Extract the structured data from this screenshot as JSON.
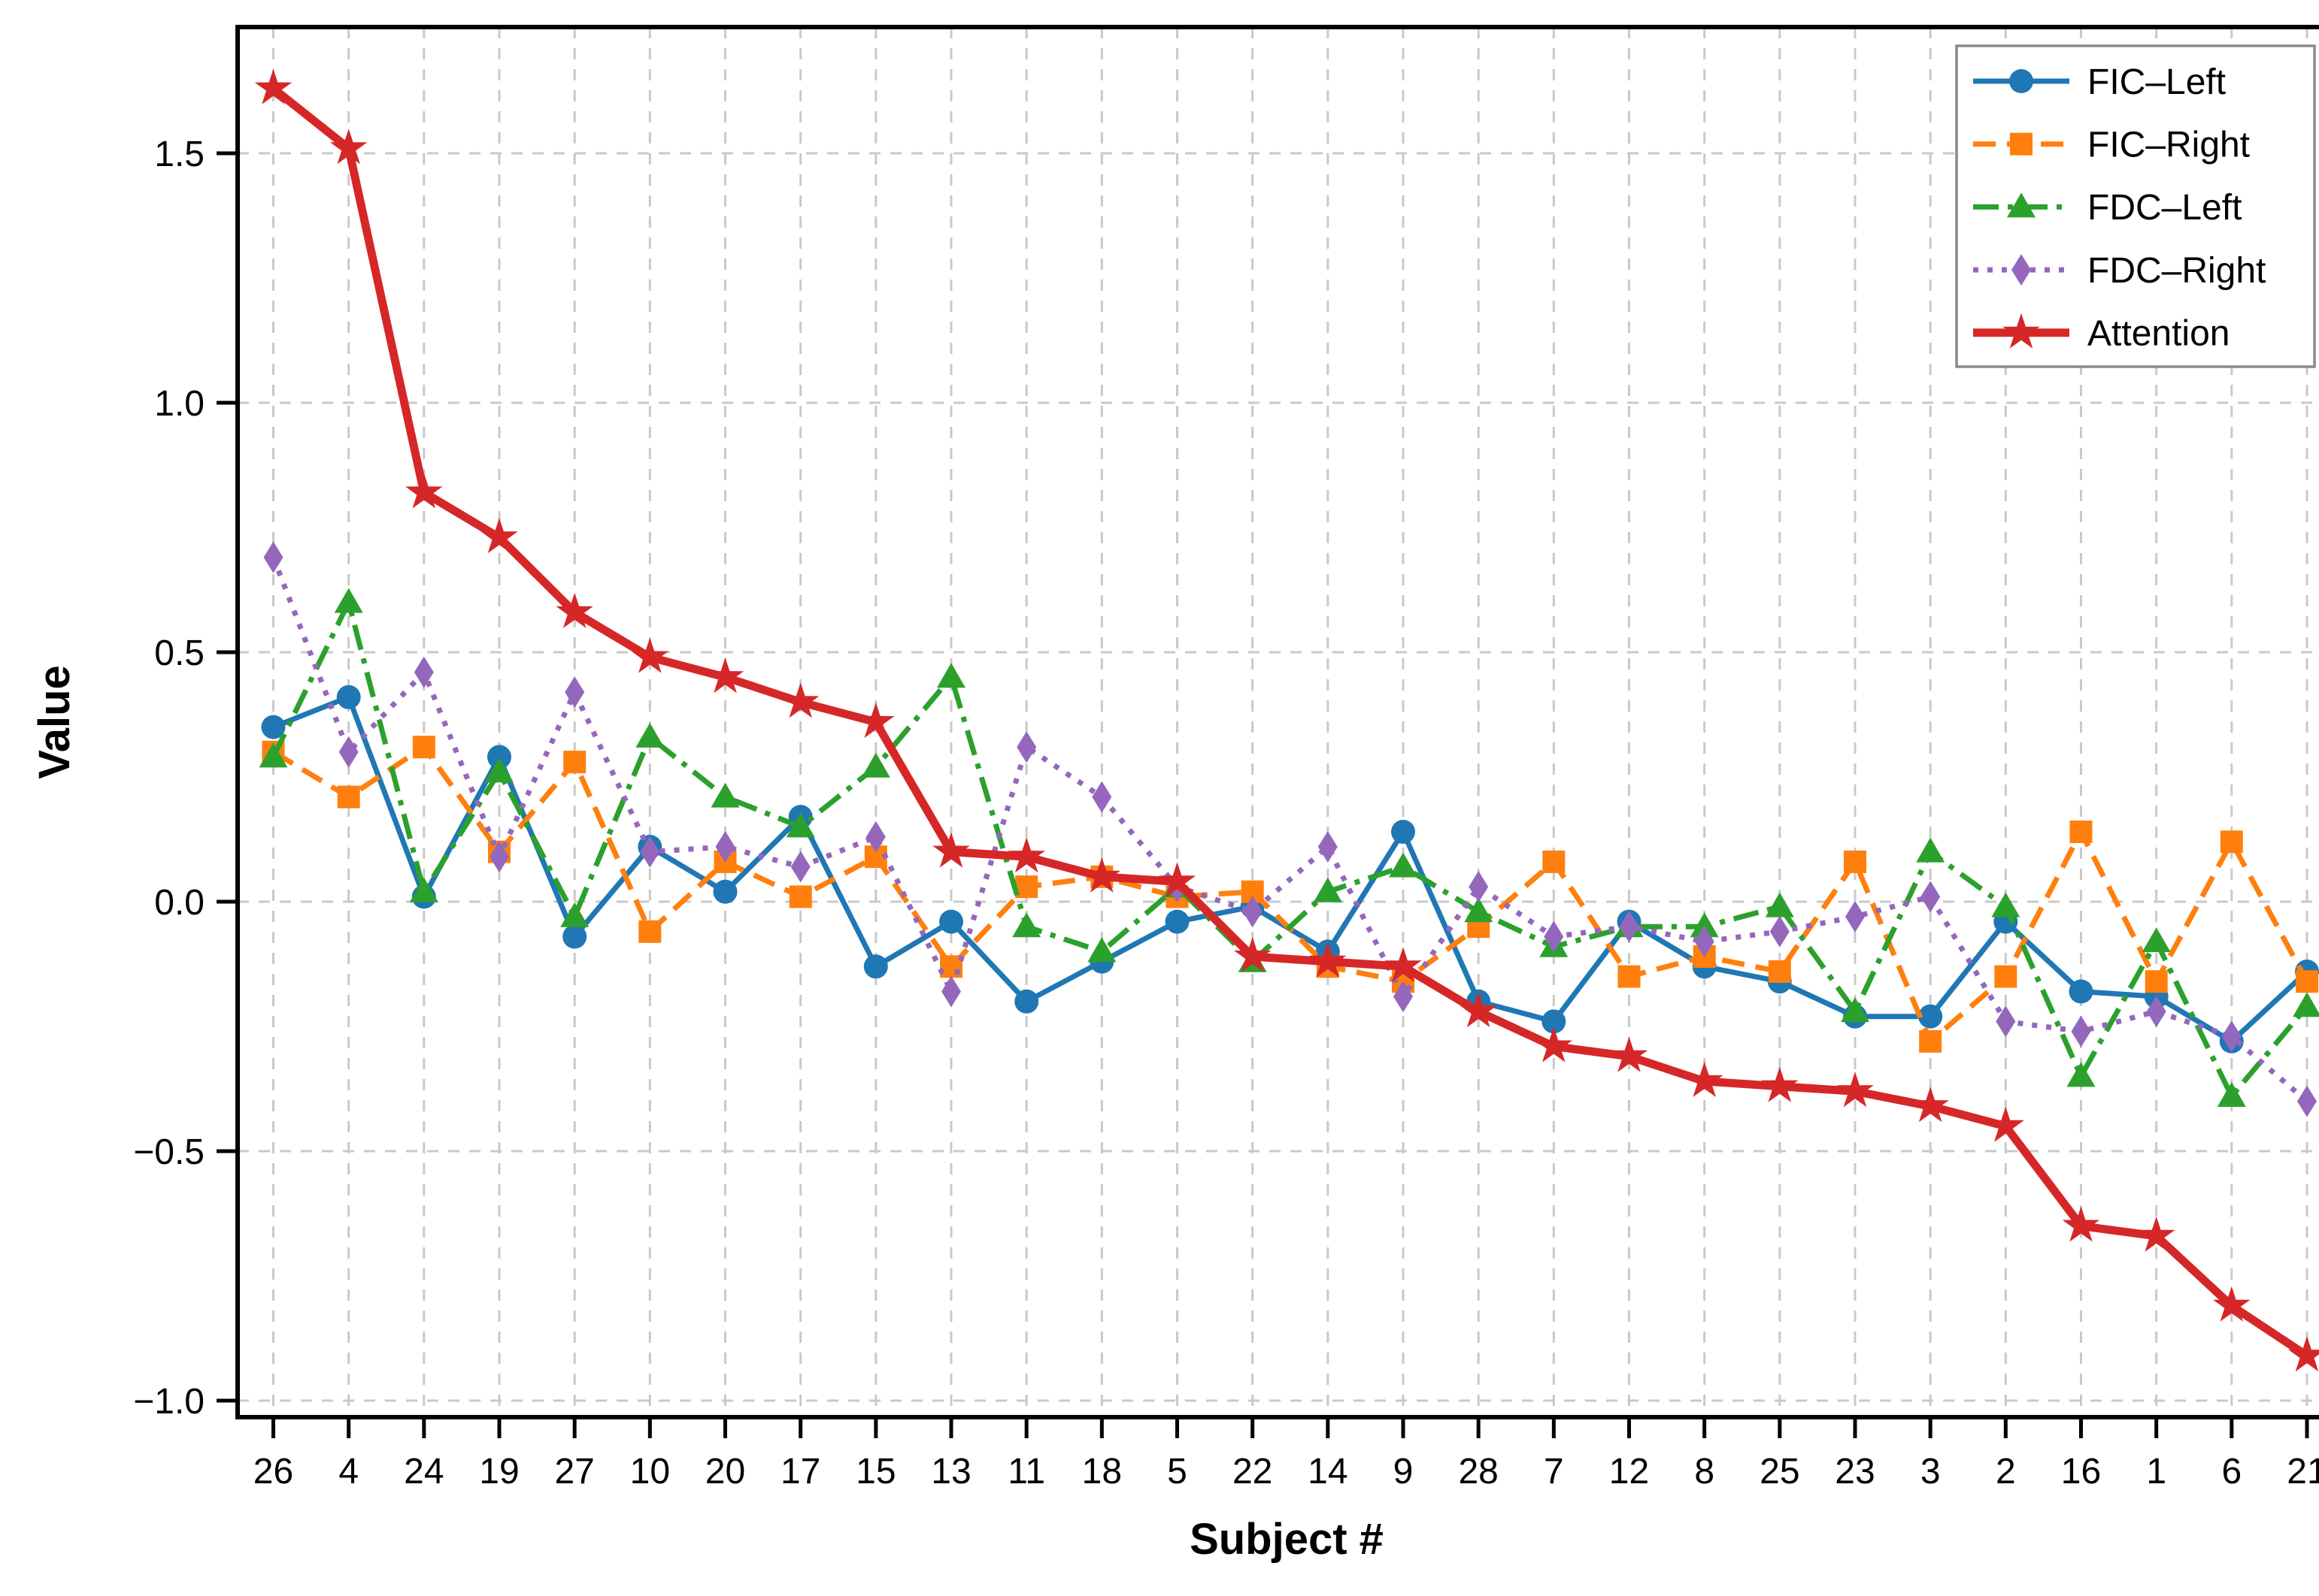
{
  "chart_data": {
    "type": "line",
    "title": "",
    "xlabel": "Subject #",
    "ylabel": "Value",
    "categories": [
      "26",
      "4",
      "24",
      "19",
      "27",
      "10",
      "20",
      "17",
      "15",
      "13",
      "11",
      "18",
      "5",
      "22",
      "14",
      "9",
      "28",
      "7",
      "12",
      "8",
      "25",
      "23",
      "3",
      "2",
      "16",
      "1",
      "6",
      "21"
    ],
    "ytick_values": [
      1.5,
      1.0,
      0.5,
      0.0,
      -0.5,
      -1.0
    ],
    "ytick_labels": [
      "1.5",
      "1.0",
      "0.5",
      "0.0",
      "−0.5",
      "−1.0"
    ],
    "ylim": [
      -1.05,
      1.74
    ],
    "grid": true,
    "grid_color": "#c9c9c9",
    "frame_color": "#000000",
    "legend_position": "top-right",
    "series": [
      {
        "name": "FIC–Left",
        "color": "#1f77b4",
        "marker": "circle",
        "linestyle": "solid",
        "values": [
          0.35,
          0.41,
          0.01,
          0.29,
          -0.07,
          0.11,
          0.02,
          0.17,
          -0.13,
          -0.04,
          -0.2,
          -0.12,
          -0.04,
          -0.01,
          -0.1,
          0.14,
          -0.2,
          -0.24,
          -0.04,
          -0.13,
          -0.16,
          -0.23,
          -0.23,
          -0.04,
          -0.18,
          -0.19,
          -0.28,
          -0.14
        ]
      },
      {
        "name": "FIC–Right",
        "color": "#ff7f0e",
        "marker": "square",
        "linestyle": "dashed",
        "values": [
          0.3,
          0.21,
          0.31,
          0.1,
          0.28,
          -0.06,
          0.08,
          0.01,
          0.09,
          -0.13,
          0.03,
          0.05,
          0.01,
          0.02,
          -0.13,
          -0.16,
          -0.05,
          0.08,
          -0.15,
          -0.11,
          -0.14,
          0.08,
          -0.28,
          -0.15,
          0.14,
          -0.16,
          0.12,
          -0.16
        ]
      },
      {
        "name": "FDC–Left",
        "color": "#2ca02c",
        "marker": "triangle",
        "linestyle": "dashdot",
        "values": [
          0.29,
          0.6,
          0.02,
          0.26,
          -0.03,
          0.33,
          0.21,
          0.15,
          0.27,
          0.45,
          -0.05,
          -0.1,
          0.03,
          -0.12,
          0.02,
          0.07,
          -0.02,
          -0.09,
          -0.05,
          -0.05,
          -0.01,
          -0.22,
          0.1,
          -0.01,
          -0.35,
          -0.08,
          -0.39,
          -0.21
        ]
      },
      {
        "name": "FDC–Right",
        "color": "#9467bd",
        "marker": "diamond",
        "linestyle": "dotted",
        "values": [
          0.69,
          0.3,
          0.46,
          0.09,
          0.42,
          0.1,
          0.11,
          0.07,
          0.13,
          -0.18,
          0.31,
          0.21,
          0.03,
          -0.02,
          0.11,
          -0.19,
          0.03,
          -0.07,
          -0.05,
          -0.08,
          -0.06,
          -0.03,
          0.01,
          -0.24,
          -0.26,
          -0.22,
          -0.27,
          -0.4
        ]
      },
      {
        "name": "Attention",
        "color": "#d62728",
        "marker": "star",
        "linestyle": "solid-thick",
        "values": [
          1.63,
          1.51,
          0.82,
          0.73,
          0.58,
          0.49,
          0.45,
          0.4,
          0.36,
          0.1,
          0.09,
          0.05,
          0.04,
          -0.11,
          -0.12,
          -0.13,
          -0.22,
          -0.29,
          -0.31,
          -0.36,
          -0.37,
          -0.38,
          -0.41,
          -0.45,
          -0.65,
          -0.67,
          -0.81,
          -0.91
        ]
      }
    ]
  }
}
